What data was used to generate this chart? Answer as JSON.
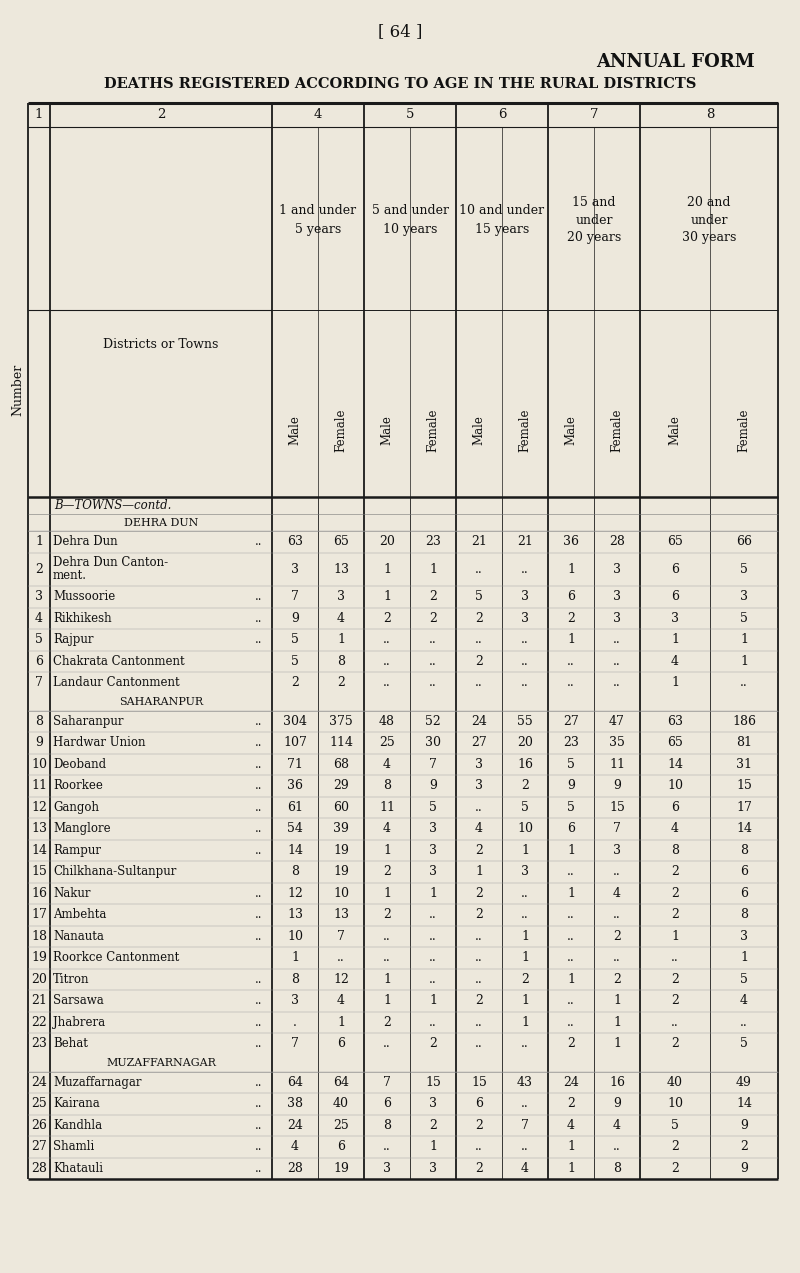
{
  "page_num": "[ 64 ]",
  "title1": "ANNUAL FORM",
  "title2": "DEATHS REGISTERED ACCORDING TO AGE IN THE RURAL DISTRICTS",
  "bg_color": "#ede8dc",
  "rows": [
    {
      "num": "",
      "name": "B—TOWNS—contd.",
      "cols": [
        "",
        "",
        "",
        "",
        "",
        "",
        "",
        "",
        "",
        ""
      ],
      "type": "section_italic"
    },
    {
      "num": "",
      "name": "DEHRA DUN",
      "cols": [
        "",
        "",
        "",
        "",
        "",
        "",
        "",
        "",
        "",
        ""
      ],
      "type": "section_smallcaps"
    },
    {
      "num": "1",
      "name": "Dehra Dun",
      "dots": true,
      "cols": [
        "63",
        "65",
        "20",
        "23",
        "21",
        "21",
        "36",
        "28",
        "65",
        "66"
      ]
    },
    {
      "num": "2",
      "name": "Dehra Dun Canton-",
      "name2": "ment.",
      "dots": false,
      "cols": [
        "3",
        "13",
        "1",
        "1",
        "..",
        "..",
        "1",
        "3",
        "6",
        "5"
      ]
    },
    {
      "num": "3",
      "name": "Mussoorie",
      "dots": true,
      "cols": [
        "7",
        "3",
        "1",
        "2",
        "5",
        "3",
        "6",
        "3",
        "6",
        "3"
      ]
    },
    {
      "num": "4",
      "name": "Rikhikesh",
      "dots": true,
      "cols": [
        "9",
        "4",
        "2",
        "2",
        "2",
        "3",
        "2",
        "3",
        "3",
        "5"
      ]
    },
    {
      "num": "5",
      "name": "Rajpur",
      "dots": true,
      "cols": [
        "5",
        "1",
        "..",
        "..",
        "..",
        "..",
        "1",
        "..",
        "1",
        "1"
      ]
    },
    {
      "num": "6",
      "name": "Chakrata Cantonment",
      "dots": false,
      "cols": [
        "5",
        "8",
        "..",
        "..",
        "2",
        "..",
        "..",
        "..",
        "4",
        "1"
      ]
    },
    {
      "num": "7",
      "name": "Landaur Cantonment",
      "dots": false,
      "cols": [
        "2",
        "2",
        "..",
        "..",
        "..",
        "..",
        "..",
        "..",
        "1",
        ".."
      ]
    },
    {
      "num": "",
      "name": "SAHARANPUR",
      "cols": [
        "",
        "",
        "",
        "",
        "",
        "",
        "",
        "",
        "",
        ""
      ],
      "type": "section_smallcaps"
    },
    {
      "num": "8",
      "name": "Saharanpur",
      "dots": true,
      "cols": [
        "304",
        "375",
        "48",
        "52",
        "24",
        "55",
        "27",
        "47",
        "63",
        "186"
      ]
    },
    {
      "num": "9",
      "name": "Hardwar Union",
      "dots": true,
      "cols": [
        "107",
        "114",
        "25",
        "30",
        "27",
        "20",
        "23",
        "35",
        "65",
        "81"
      ]
    },
    {
      "num": "10",
      "name": "Deoband",
      "dots": true,
      "cols": [
        "71",
        "68",
        "4",
        "7",
        "3",
        "16",
        "5",
        "11",
        "14",
        "31"
      ]
    },
    {
      "num": "11",
      "name": "Roorkee",
      "dots": true,
      "cols": [
        "36",
        "29",
        "8",
        "9",
        "3",
        "2",
        "9",
        "9",
        "10",
        "15"
      ]
    },
    {
      "num": "12",
      "name": "Gangoh",
      "dots": true,
      "cols": [
        "61",
        "60",
        "11",
        "5",
        "..",
        "5",
        "5",
        "15",
        "6",
        "17"
      ]
    },
    {
      "num": "13",
      "name": "Manglore",
      "dots": true,
      "cols": [
        "54",
        "39",
        "4",
        "3",
        "4",
        "10",
        "6",
        "7",
        "4",
        "14"
      ]
    },
    {
      "num": "14",
      "name": "Rampur",
      "dots": true,
      "cols": [
        "14",
        "19",
        "1",
        "3",
        "2",
        "1",
        "1",
        "3",
        "8",
        "8"
      ]
    },
    {
      "num": "15",
      "name": "Chilkhana-Sultanpur",
      "dots": false,
      "cols": [
        "8",
        "19",
        "2",
        "3",
        "1",
        "3",
        "..",
        "..",
        "2",
        "6"
      ]
    },
    {
      "num": "16",
      "name": "Nakur",
      "dots": true,
      "cols": [
        "12",
        "10",
        "1",
        "1",
        "2",
        "..",
        "1",
        "4",
        "2",
        "6"
      ]
    },
    {
      "num": "17",
      "name": "Ambehta",
      "dots": true,
      "cols": [
        "13",
        "13",
        "2",
        "..",
        "2",
        "..",
        "..",
        "..",
        "2",
        "8"
      ]
    },
    {
      "num": "18",
      "name": "Nanauta",
      "dots": true,
      "cols": [
        "10",
        "7",
        "..",
        "..",
        "..",
        "1",
        "..",
        "2",
        "1",
        "3"
      ]
    },
    {
      "num": "19",
      "name": "Roorkce Cantonment",
      "dots": false,
      "cols": [
        "1",
        "..",
        "..",
        "..",
        "..",
        "1",
        "..",
        "..",
        "..",
        "1"
      ]
    },
    {
      "num": "20",
      "name": "Titron",
      "dots": true,
      "cols": [
        "8",
        "12",
        "1",
        "..",
        "..",
        "2",
        "1",
        "2",
        "2",
        "5"
      ]
    },
    {
      "num": "21",
      "name": "Sarsawa",
      "dots": true,
      "cols": [
        "3",
        "4",
        "1",
        "1",
        "2",
        "1",
        "..",
        "1",
        "2",
        "4"
      ]
    },
    {
      "num": "22",
      "name": "Jhabrera",
      "dots": true,
      "cols": [
        ".",
        "1",
        "2",
        "..",
        "..",
        "1",
        "..",
        "1",
        "..",
        ".."
      ]
    },
    {
      "num": "23",
      "name": "Behat",
      "dots": true,
      "cols": [
        "7",
        "6",
        "..",
        "2",
        "..",
        "..",
        "2",
        "1",
        "2",
        "5"
      ]
    },
    {
      "num": "",
      "name": "MUZAFFARNAGAR",
      "cols": [
        "",
        "",
        "",
        "",
        "",
        "",
        "",
        "",
        "",
        ""
      ],
      "type": "section_smallcaps"
    },
    {
      "num": "24",
      "name": "Muzaffarnagar",
      "dots": true,
      "cols": [
        "64",
        "64",
        "7",
        "15",
        "15",
        "43",
        "24",
        "16",
        "40",
        "49"
      ]
    },
    {
      "num": "25",
      "name": "Kairana",
      "dots": true,
      "cols": [
        "38",
        "40",
        "6",
        "3",
        "6",
        "..",
        "2",
        "9",
        "10",
        "14"
      ]
    },
    {
      "num": "26",
      "name": "Kandhla",
      "dots": true,
      "cols": [
        "24",
        "25",
        "8",
        "2",
        "2",
        "7",
        "4",
        "4",
        "5",
        "9"
      ]
    },
    {
      "num": "27",
      "name": "Shamli",
      "dots": true,
      "cols": [
        "4",
        "6",
        "..",
        "1",
        "..",
        "..",
        "1",
        "..",
        "2",
        "2"
      ]
    },
    {
      "num": "28",
      "name": "Khatauli",
      "dots": true,
      "cols": [
        "28",
        "19",
        "3",
        "3",
        "2",
        "4",
        "1",
        "8",
        "2",
        "9"
      ]
    }
  ]
}
